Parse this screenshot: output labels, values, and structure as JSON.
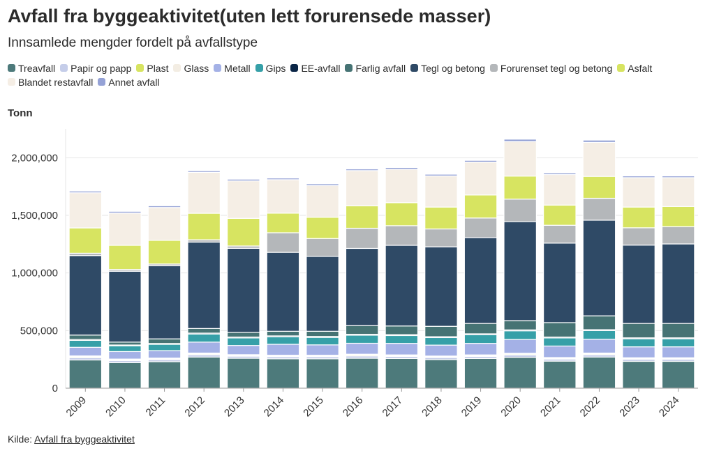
{
  "title": "Avfall fra byggeaktivitet(uten lett forurensede masser)",
  "subtitle": "Innsamlede mengder fordelt på avfallstype",
  "unit_label": "Tonn",
  "source": {
    "prefix": "Kilde: ",
    "link_text": "Avfall fra byggeaktivitet"
  },
  "chart_data": {
    "type": "bar",
    "stacked": true,
    "title": "Avfall fra byggeaktivitet(uten lett forurensede masser)",
    "subtitle": "Innsamlede mengder fordelt på avfallstype",
    "ylabel": "Tonn",
    "ylim": [
      0,
      2250000
    ],
    "yticks": [
      0,
      500000,
      1000000,
      1500000,
      2000000
    ],
    "ytick_labels": [
      "0",
      "500,000",
      "1,000,000",
      "1,500,000",
      "2,000,000"
    ],
    "grid": true,
    "legend_position": "top",
    "categories": [
      "2009",
      "2010",
      "2011",
      "2012",
      "2013",
      "2014",
      "2015",
      "2016",
      "2017",
      "2018",
      "2019",
      "2020",
      "2021",
      "2022",
      "2023",
      "2024"
    ],
    "series": [
      {
        "name": "Treavfall",
        "color": "#4d7a7b",
        "values": [
          245000,
          222000,
          230000,
          270000,
          260000,
          255000,
          255000,
          260000,
          258000,
          248000,
          258000,
          268000,
          235000,
          270000,
          233000,
          233000
        ]
      },
      {
        "name": "Papir og papp",
        "color": "#c5cde9",
        "values": [
          20000,
          18000,
          18000,
          20000,
          18000,
          18000,
          18000,
          20000,
          18000,
          18000,
          18000,
          20000,
          18000,
          20000,
          18000,
          18000
        ]
      },
      {
        "name": "Plast",
        "color": "#d7e461",
        "values": [
          8000,
          7000,
          7000,
          8000,
          7000,
          7000,
          7000,
          8000,
          7000,
          7000,
          7000,
          8000,
          7000,
          8000,
          7000,
          7000
        ]
      },
      {
        "name": "Glass",
        "color": "#f3ede3",
        "values": [
          7000,
          6000,
          6000,
          7000,
          6000,
          6000,
          6000,
          7000,
          6000,
          6000,
          6000,
          7000,
          6000,
          7000,
          6000,
          6000
        ]
      },
      {
        "name": "Metall",
        "color": "#a4b1e6",
        "values": [
          75000,
          65000,
          65000,
          95000,
          80000,
          95000,
          90000,
          95000,
          100000,
          95000,
          100000,
          120000,
          100000,
          120000,
          95000,
          95000
        ]
      },
      {
        "name": "Gips",
        "color": "#36a0a8",
        "values": [
          60000,
          50000,
          55000,
          70000,
          65000,
          65000,
          65000,
          70000,
          68000,
          65000,
          75000,
          75000,
          70000,
          75000,
          70000,
          70000
        ]
      },
      {
        "name": "EE-avfall",
        "color": "#0b2647",
        "values": [
          8000,
          7000,
          7000,
          8000,
          8000,
          8000,
          8000,
          8000,
          8000,
          8000,
          8000,
          8000,
          8000,
          8000,
          8000,
          8000
        ]
      },
      {
        "name": "Farlig avfall",
        "color": "#467374",
        "values": [
          38000,
          25000,
          40000,
          40000,
          40000,
          40000,
          45000,
          75000,
          75000,
          90000,
          90000,
          80000,
          125000,
          120000,
          125000,
          125000
        ]
      },
      {
        "name": "Tegl og betong",
        "color": "#2f4a66",
        "values": [
          690000,
          615000,
          635000,
          750000,
          730000,
          685000,
          650000,
          670000,
          700000,
          690000,
          745000,
          860000,
          690000,
          830000,
          680000,
          690000
        ]
      },
      {
        "name": "Forurenset tegl og betong",
        "color": "#b4b7ba",
        "values": [
          20000,
          15000,
          15000,
          20000,
          20000,
          170000,
          155000,
          175000,
          170000,
          155000,
          170000,
          195000,
          155000,
          190000,
          150000,
          150000
        ]
      },
      {
        "name": "Asfalt",
        "color": "#d7e461",
        "values": [
          220000,
          210000,
          205000,
          230000,
          240000,
          170000,
          185000,
          195000,
          200000,
          190000,
          200000,
          200000,
          175000,
          190000,
          180000,
          175000
        ]
      },
      {
        "name": "Blandet restavfall",
        "color": "#f5eee5",
        "values": [
          305000,
          280000,
          285000,
          355000,
          325000,
          290000,
          275000,
          305000,
          290000,
          270000,
          285000,
          300000,
          265000,
          295000,
          255000,
          250000
        ]
      },
      {
        "name": "Annet avfall",
        "color": "#95a2d6",
        "values": [
          15000,
          15000,
          15000,
          15000,
          15000,
          15000,
          15000,
          15000,
          15000,
          15000,
          15000,
          20000,
          15000,
          20000,
          15000,
          15000
        ]
      }
    ]
  }
}
